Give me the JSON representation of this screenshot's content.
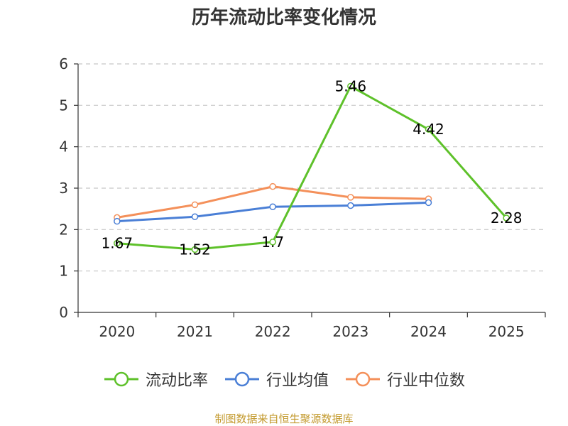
{
  "chart_data": {
    "type": "line",
    "title": "历年流动比率变化情况",
    "categories": [
      "2020",
      "2021",
      "2022",
      "2023",
      "2024",
      "2025"
    ],
    "ylim": [
      0,
      6
    ],
    "yticks": [
      "0",
      "1",
      "2",
      "3",
      "4",
      "5",
      "6"
    ],
    "grid": true,
    "legend_position": "bottom",
    "series": [
      {
        "name": "流动比率",
        "color": "#5ec12a",
        "values": [
          1.67,
          1.52,
          1.7,
          5.46,
          4.42,
          2.28
        ],
        "labels": [
          "1.67",
          "1.52",
          "1.7",
          "5.46",
          "4.42",
          "2.28"
        ]
      },
      {
        "name": "行业均值",
        "color": "#4a7fd6",
        "values": [
          2.2,
          2.31,
          2.55,
          2.58,
          2.65,
          null
        ]
      },
      {
        "name": "行业中位数",
        "color": "#f4905a",
        "values": [
          2.29,
          2.6,
          3.04,
          2.78,
          2.74,
          null
        ]
      }
    ]
  },
  "source": "制图数据来自恒生聚源数据库"
}
